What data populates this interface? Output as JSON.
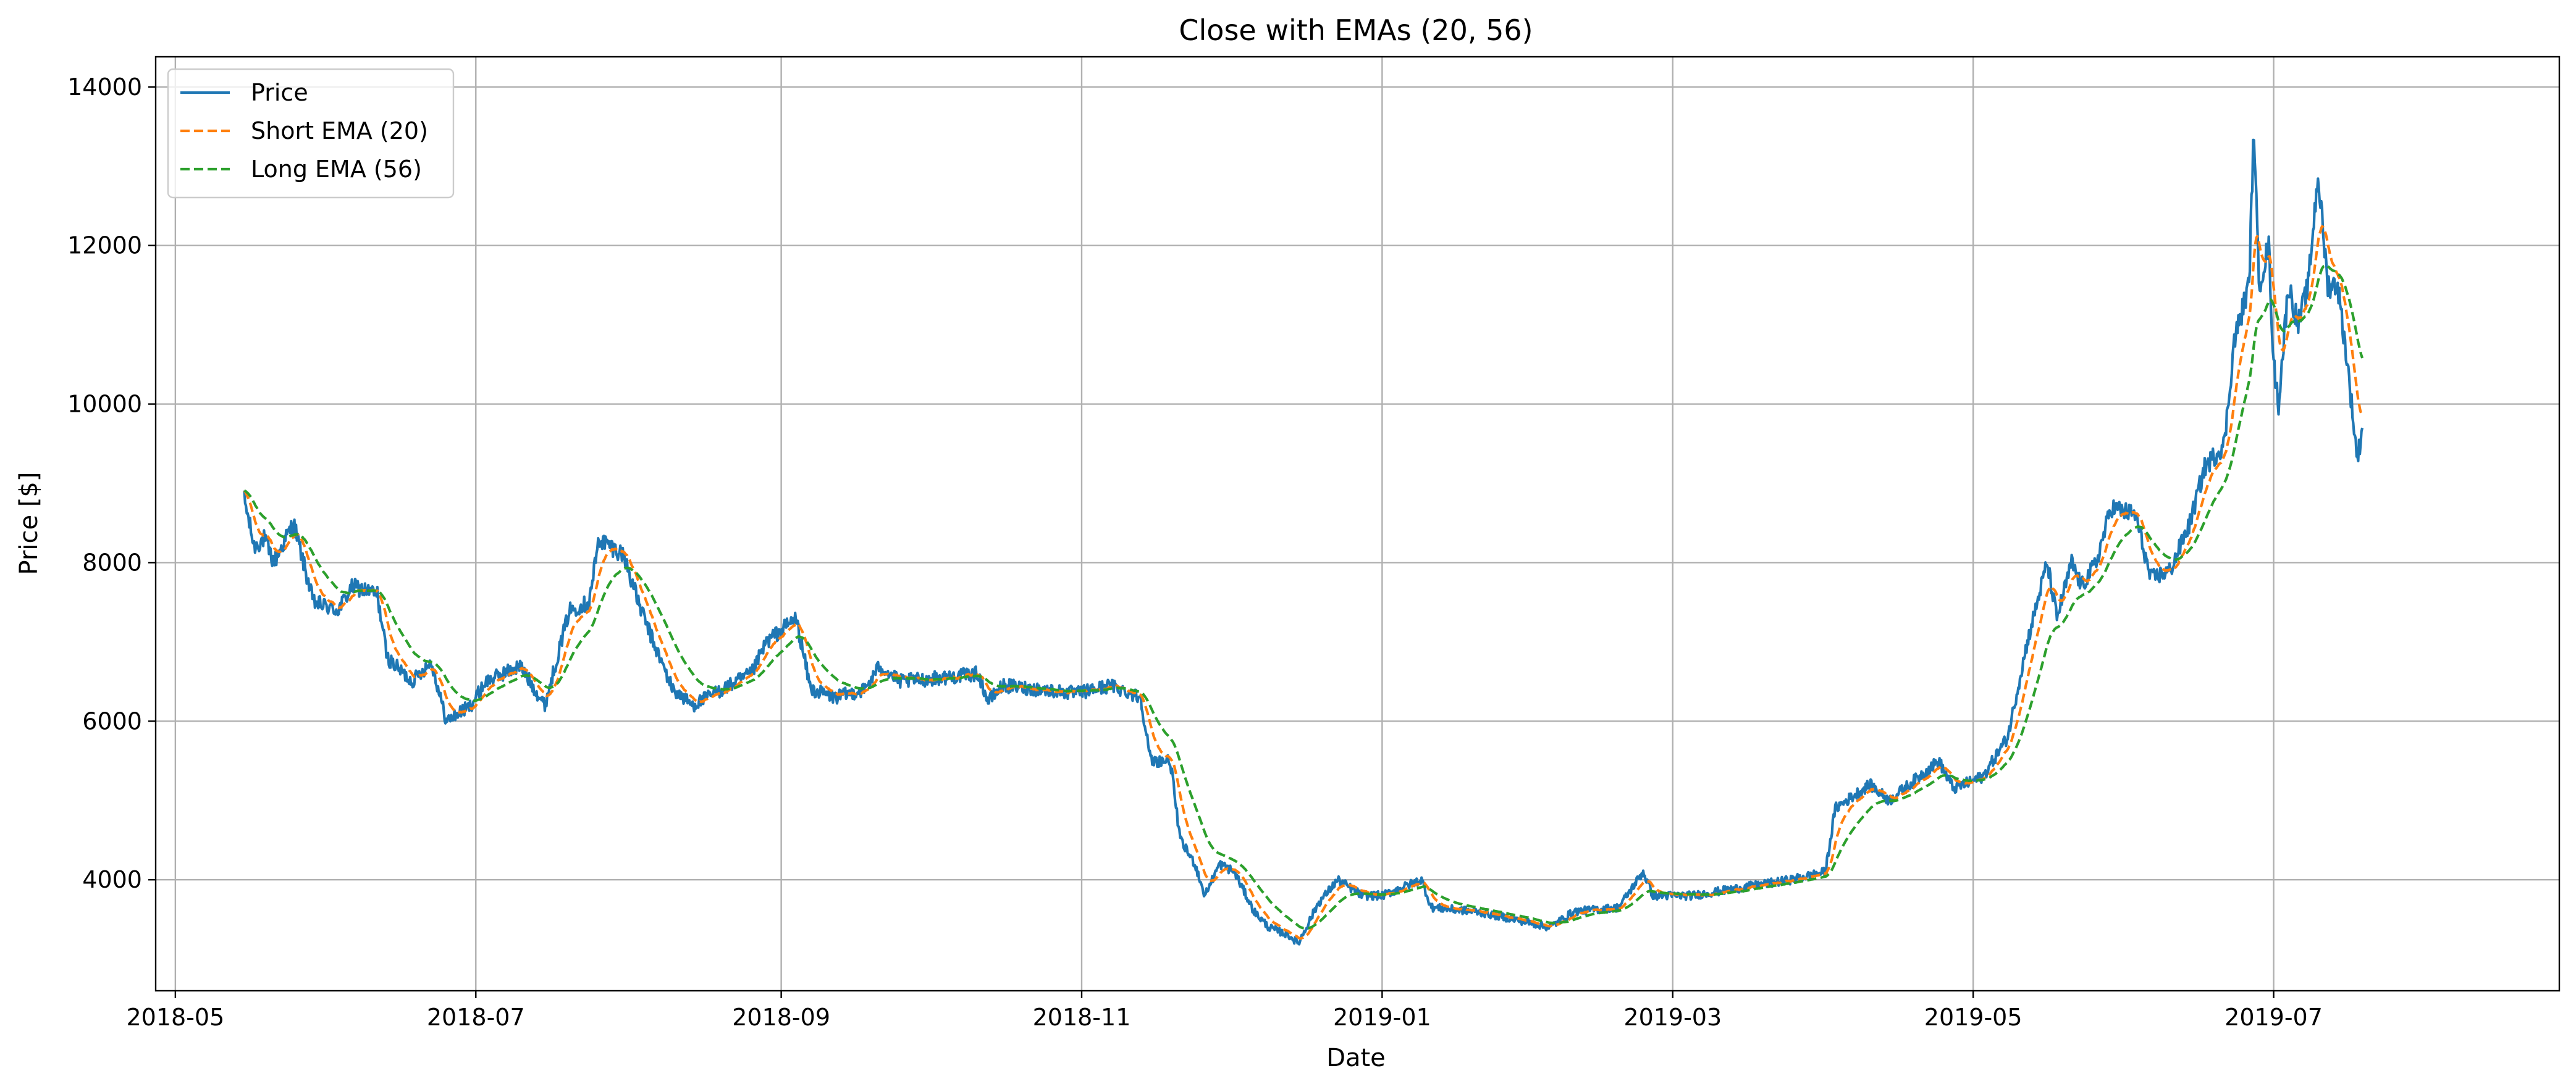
{
  "chart_data": {
    "type": "line",
    "title": "Close with EMAs (20, 56)",
    "xlabel": "Date",
    "ylabel": "Price [$]",
    "xlim": [
      "2018-04-27",
      "2019-08-28"
    ],
    "ylim": [
      2600,
      14380
    ],
    "x_ticks": [
      "2018-05",
      "2018-07",
      "2018-09",
      "2018-11",
      "2019-01",
      "2019-03",
      "2019-05",
      "2019-07"
    ],
    "y_ticks": [
      4000,
      6000,
      8000,
      10000,
      12000,
      14000
    ],
    "grid": true,
    "legend_position": "top-left",
    "colors": {
      "price": "#1f77b4",
      "short": "#ff7f0e",
      "long": "#2ca02c",
      "grid": "#b0b0b0"
    },
    "price_keypoints": [
      [
        "2018-05-15",
        8800
      ],
      [
        "2018-05-17",
        8200
      ],
      [
        "2018-05-19",
        8300
      ],
      [
        "2018-05-21",
        8000
      ],
      [
        "2018-05-25",
        8500
      ],
      [
        "2018-05-29",
        7500
      ],
      [
        "2018-06-03",
        7400
      ],
      [
        "2018-06-06",
        7700
      ],
      [
        "2018-06-11",
        7600
      ],
      [
        "2018-06-13",
        6800
      ],
      [
        "2018-06-18",
        6500
      ],
      [
        "2018-06-22",
        6750
      ],
      [
        "2018-06-25",
        6000
      ],
      [
        "2018-06-30",
        6200
      ],
      [
        "2018-07-03",
        6500
      ],
      [
        "2018-07-10",
        6700
      ],
      [
        "2018-07-15",
        6200
      ],
      [
        "2018-07-20",
        7400
      ],
      [
        "2018-07-24",
        7500
      ],
      [
        "2018-07-26",
        8300
      ],
      [
        "2018-07-31",
        8100
      ],
      [
        "2018-08-03",
        7500
      ],
      [
        "2018-08-06",
        7000
      ],
      [
        "2018-08-10",
        6400
      ],
      [
        "2018-08-14",
        6200
      ],
      [
        "2018-08-20",
        6400
      ],
      [
        "2018-08-26",
        6600
      ],
      [
        "2018-08-29",
        7000
      ],
      [
        "2018-09-04",
        7300
      ],
      [
        "2018-09-07",
        6400
      ],
      [
        "2018-09-12",
        6300
      ],
      [
        "2018-09-18",
        6400
      ],
      [
        "2018-09-21",
        6700
      ],
      [
        "2018-09-25",
        6500
      ],
      [
        "2018-10-04",
        6550
      ],
      [
        "2018-10-11",
        6600
      ],
      [
        "2018-10-13",
        6250
      ],
      [
        "2018-10-16",
        6450
      ],
      [
        "2018-10-31",
        6350
      ],
      [
        "2018-11-07",
        6450
      ],
      [
        "2018-11-13",
        6300
      ],
      [
        "2018-11-15",
        5500
      ],
      [
        "2018-11-19",
        5500
      ],
      [
        "2018-11-21",
        4500
      ],
      [
        "2018-11-24",
        4200
      ],
      [
        "2018-11-26",
        3800
      ],
      [
        "2018-11-29",
        4200
      ],
      [
        "2018-12-02",
        4100
      ],
      [
        "2018-12-06",
        3600
      ],
      [
        "2018-12-09",
        3400
      ],
      [
        "2018-12-13",
        3300
      ],
      [
        "2018-12-15",
        3200
      ],
      [
        "2018-12-19",
        3700
      ],
      [
        "2018-12-23",
        4000
      ],
      [
        "2018-12-28",
        3800
      ],
      [
        "2019-01-01",
        3800
      ],
      [
        "2019-01-05",
        3900
      ],
      [
        "2019-01-09",
        4000
      ],
      [
        "2019-01-11",
        3650
      ],
      [
        "2019-01-20",
        3600
      ],
      [
        "2019-01-28",
        3500
      ],
      [
        "2019-02-04",
        3400
      ],
      [
        "2019-02-09",
        3600
      ],
      [
        "2019-02-18",
        3650
      ],
      [
        "2019-02-23",
        4100
      ],
      [
        "2019-02-25",
        3800
      ],
      [
        "2019-03-05",
        3800
      ],
      [
        "2019-03-15",
        3900
      ],
      [
        "2019-03-25",
        4000
      ],
      [
        "2019-04-01",
        4100
      ],
      [
        "2019-04-03",
        4900
      ],
      [
        "2019-04-10",
        5200
      ],
      [
        "2019-04-14",
        5000
      ],
      [
        "2019-04-20",
        5300
      ],
      [
        "2019-04-24",
        5500
      ],
      [
        "2019-04-27",
        5150
      ],
      [
        "2019-05-03",
        5300
      ],
      [
        "2019-05-08",
        5800
      ],
      [
        "2019-05-12",
        7000
      ],
      [
        "2019-05-16",
        8000
      ],
      [
        "2019-05-18",
        7300
      ],
      [
        "2019-05-21",
        8000
      ],
      [
        "2019-05-23",
        7700
      ],
      [
        "2019-05-26",
        8000
      ],
      [
        "2019-05-29",
        8700
      ],
      [
        "2019-06-03",
        8600
      ],
      [
        "2019-06-06",
        7800
      ],
      [
        "2019-06-10",
        7900
      ],
      [
        "2019-06-14",
        8500
      ],
      [
        "2019-06-17",
        9200
      ],
      [
        "2019-06-21",
        9500
      ],
      [
        "2019-06-23",
        10800
      ],
      [
        "2019-06-26",
        11500
      ],
      [
        "2019-06-27",
        13500
      ],
      [
        "2019-06-28",
        11500
      ],
      [
        "2019-06-30",
        12000
      ],
      [
        "2019-07-01",
        10500
      ],
      [
        "2019-07-02",
        10000
      ],
      [
        "2019-07-04",
        11500
      ],
      [
        "2019-07-06",
        11000
      ],
      [
        "2019-07-08",
        11500
      ],
      [
        "2019-07-10",
        12900
      ],
      [
        "2019-07-12",
        11500
      ],
      [
        "2019-07-14",
        11500
      ],
      [
        "2019-07-16",
        10500
      ],
      [
        "2019-07-18",
        9300
      ],
      [
        "2019-07-19",
        9700
      ]
    ],
    "series": [
      {
        "name": "Price",
        "style": "solid",
        "color_key": "price"
      },
      {
        "name": "Short EMA (20)",
        "style": "dashed",
        "color_key": "short"
      },
      {
        "name": "Long EMA (56)",
        "style": "dashed",
        "color_key": "long"
      }
    ]
  }
}
